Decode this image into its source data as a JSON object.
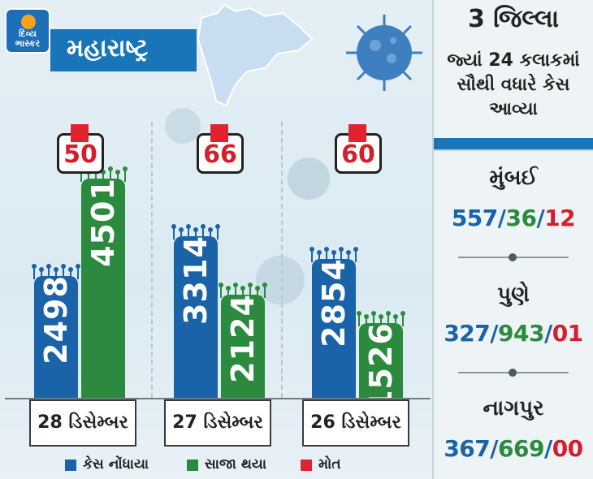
{
  "brand": {
    "logo_text": "દિવ્ય ભાસ્કર"
  },
  "state_title": "મહારાષ્ટ્ર",
  "colors": {
    "cases": "#1a63a8",
    "recovered": "#2b8a3e",
    "deaths": "#e12330",
    "accent": "#1a74b8"
  },
  "chart_data": {
    "type": "bar",
    "categories": [
      "28 ડિસેમ્બર",
      "27 ડિસેમ્બર",
      "26 ડિસેમ્બર"
    ],
    "series": [
      {
        "name": "કેસ નોંધાયા",
        "values": [
          2498,
          3314,
          2854
        ]
      },
      {
        "name": "સાજા થયા",
        "values": [
          4501,
          2124,
          1526
        ]
      },
      {
        "name": "મોત",
        "values": [
          50,
          66,
          60
        ]
      }
    ],
    "ylim": [
      0,
      5000
    ],
    "grid": false,
    "legend": "bottom"
  },
  "labels": {
    "cases": [
      "2498",
      "3314",
      "2854"
    ],
    "recovered": [
      "4501",
      "2124",
      "1526"
    ],
    "deaths": [
      "50",
      "66",
      "60"
    ],
    "dates": [
      "28 ડિસેમ્બર",
      "27 ડિસેમ્બર",
      "26 ડિસેમ્બર"
    ]
  },
  "legend": {
    "cases": "કેસ નોંધાયા",
    "recovered": "સાજા થયા",
    "deaths": "મોત"
  },
  "panel": {
    "heading_1": "3 જિલ્લા",
    "heading_2": "જ્યાં 24 કલાકમાં સૌથી વધારે કેસ આવ્યા",
    "cities": [
      {
        "name": "મુંબઈ",
        "cases": "557",
        "recovered": "36",
        "deaths": "12"
      },
      {
        "name": "પુણે",
        "cases": "327",
        "recovered": "943",
        "deaths": "01"
      },
      {
        "name": "નાગપુર",
        "cases": "367",
        "recovered": "669",
        "deaths": "00"
      }
    ]
  }
}
